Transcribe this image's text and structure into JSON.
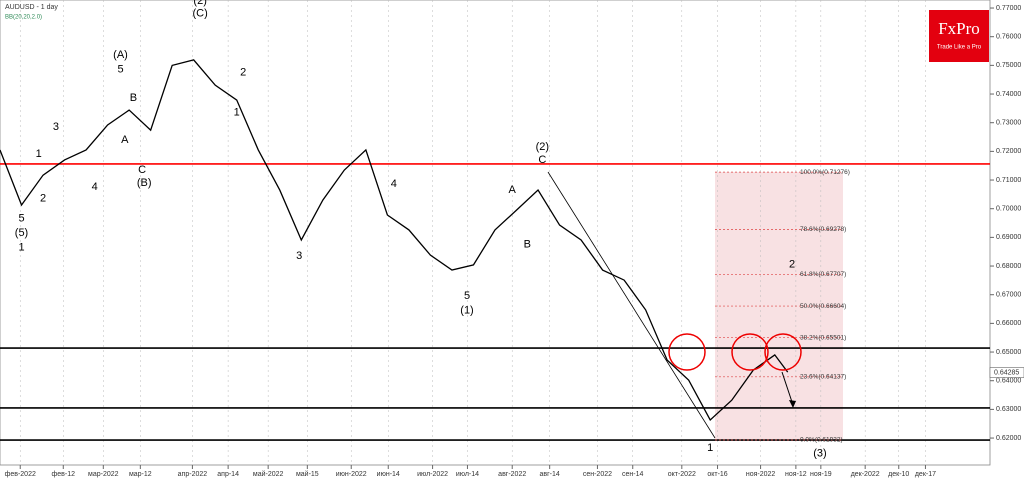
{
  "chart_data": {
    "type": "line",
    "title": "AUDUSD - 1 day",
    "subtitle": "BB(20,20,2.0)",
    "brand": {
      "name": "FxPro",
      "tagline": "Trade Like a Pro"
    },
    "x": [
      0,
      5,
      10,
      15,
      20,
      25,
      30,
      35,
      40,
      45,
      50,
      55,
      60,
      65,
      70,
      75,
      80,
      85,
      90,
      95,
      100,
      105,
      110,
      115,
      120,
      125,
      130,
      135,
      140,
      145,
      150,
      155,
      160,
      165,
      170,
      175,
      180,
      183
    ],
    "series": [
      {
        "name": "AUDUSD",
        "color": "#000000",
        "values": [
          0.7205,
          0.7013,
          0.7117,
          0.717,
          0.7205,
          0.7292,
          0.7344,
          0.7274,
          0.75,
          0.7519,
          0.7431,
          0.7379,
          0.7205,
          0.7065,
          0.6891,
          0.703,
          0.7135,
          0.7205,
          0.6978,
          0.6926,
          0.6838,
          0.6786,
          0.6804,
          0.6926,
          0.6995,
          0.7065,
          0.6943,
          0.6891,
          0.6786,
          0.6751,
          0.6647,
          0.6472,
          0.6402,
          0.6263,
          0.6332,
          0.6437,
          0.649,
          0.643
        ]
      }
    ],
    "xlim": [
      0,
      230
    ],
    "ylim": [
      0.6106,
      0.7728
    ],
    "xticks": [
      {
        "value": 4.7,
        "label": "фев-2022"
      },
      {
        "value": 14.7,
        "label": "фев-12"
      },
      {
        "value": 24,
        "label": "мар-2022"
      },
      {
        "value": 32.6,
        "label": "мар-12"
      },
      {
        "value": 44.7,
        "label": "апр-2022"
      },
      {
        "value": 53,
        "label": "апр-14"
      },
      {
        "value": 62.3,
        "label": "май-2022"
      },
      {
        "value": 71.4,
        "label": "май-15"
      },
      {
        "value": 81.6,
        "label": "июн-2022"
      },
      {
        "value": 90.2,
        "label": "июн-14"
      },
      {
        "value": 100.5,
        "label": "июл-2022"
      },
      {
        "value": 108.6,
        "label": "июл-14"
      },
      {
        "value": 119,
        "label": "авг-2022"
      },
      {
        "value": 127.7,
        "label": "авг-14"
      },
      {
        "value": 138.8,
        "label": "сен-2022"
      },
      {
        "value": 147,
        "label": "сен-14"
      },
      {
        "value": 158.4,
        "label": "окт-2022"
      },
      {
        "value": 166.7,
        "label": "окт-16"
      },
      {
        "value": 176.7,
        "label": "ноя-2022"
      },
      {
        "value": 184.9,
        "label": "ноя-12"
      },
      {
        "value": 190.7,
        "label": "ноя-19"
      },
      {
        "value": 201,
        "label": "дек-2022"
      },
      {
        "value": 208.8,
        "label": "дек-10"
      },
      {
        "value": 215,
        "label": "дек-17"
      }
    ],
    "yticks": [
      {
        "value": 0.62,
        "label": "0.62000"
      },
      {
        "value": 0.63,
        "label": "0.63000"
      },
      {
        "value": 0.64,
        "label": "0.64000"
      },
      {
        "value": 0.65,
        "label": "0.65000"
      },
      {
        "value": 0.66,
        "label": "0.66000"
      },
      {
        "value": 0.67,
        "label": "0.67000"
      },
      {
        "value": 0.68,
        "label": "0.68000"
      },
      {
        "value": 0.69,
        "label": "0.69000"
      },
      {
        "value": 0.7,
        "label": "0.70000"
      },
      {
        "value": 0.71,
        "label": "0.71000"
      },
      {
        "value": 0.72,
        "label": "0.72000"
      },
      {
        "value": 0.73,
        "label": "0.73000"
      },
      {
        "value": 0.74,
        "label": "0.74000"
      },
      {
        "value": 0.75,
        "label": "0.75000"
      },
      {
        "value": 0.76,
        "label": "0.76000"
      },
      {
        "value": 0.77,
        "label": "0.77000"
      }
    ],
    "current_price": {
      "value": 0.64285,
      "label": "0.64285"
    },
    "levels": [
      {
        "value": 0.7156,
        "color": "#ff0000"
      },
      {
        "value": 0.6514,
        "color": "#000000"
      },
      {
        "value": 0.6305,
        "color": "#000000"
      },
      {
        "value": 0.6193,
        "color": "#000000"
      }
    ],
    "fib_levels": [
      {
        "value": 0.71276,
        "label": "100.0%(0.71276)"
      },
      {
        "value": 0.69278,
        "label": "78.6%(0.69278)"
      },
      {
        "value": 0.67707,
        "label": "61.8%(0.67707)"
      },
      {
        "value": 0.66604,
        "label": "50.0%(0.66604)"
      },
      {
        "value": 0.65501,
        "label": "38.2%(0.65501)"
      },
      {
        "value": 0.64137,
        "label": "23.6%(0.64137)"
      },
      {
        "value": 0.61932,
        "label": "0.0%(0.61932)"
      }
    ],
    "annotations": [
      {
        "text": "5",
        "x": 5,
        "y": 0.6965
      },
      {
        "text": "(5)",
        "x": 5,
        "y": 0.6915
      },
      {
        "text": "1",
        "x": 5,
        "y": 0.6865
      },
      {
        "text": "1",
        "x": 9,
        "y": 0.719
      },
      {
        "text": "2",
        "x": 10,
        "y": 0.7035
      },
      {
        "text": "3",
        "x": 13,
        "y": 0.7285
      },
      {
        "text": "4",
        "x": 22,
        "y": 0.7075
      },
      {
        "text": "(A)",
        "x": 28,
        "y": 0.7535
      },
      {
        "text": "5",
        "x": 28,
        "y": 0.7485
      },
      {
        "text": "B",
        "x": 31,
        "y": 0.7385
      },
      {
        "text": "A",
        "x": 29,
        "y": 0.724
      },
      {
        "text": "C",
        "x": 33,
        "y": 0.7135
      },
      {
        "text": "(B)",
        "x": 33.5,
        "y": 0.709
      },
      {
        "text": "(2)",
        "x": 46.5,
        "y": 0.7725
      },
      {
        "text": "(C)",
        "x": 46.5,
        "y": 0.768
      },
      {
        "text": "2",
        "x": 56.5,
        "y": 0.7475
      },
      {
        "text": "1",
        "x": 55,
        "y": 0.7335
      },
      {
        "text": "4",
        "x": 91.5,
        "y": 0.7085
      },
      {
        "text": "3",
        "x": 69.5,
        "y": 0.6835
      },
      {
        "text": "5",
        "x": 108.5,
        "y": 0.6695
      },
      {
        "text": "(1)",
        "x": 108.5,
        "y": 0.6645
      },
      {
        "text": "A",
        "x": 119,
        "y": 0.7065
      },
      {
        "text": "B",
        "x": 122.5,
        "y": 0.6875
      },
      {
        "text": "(2)",
        "x": 126,
        "y": 0.7215
      },
      {
        "text": "C",
        "x": 126,
        "y": 0.717
      },
      {
        "text": "2",
        "x": 184,
        "y": 0.6805
      },
      {
        "text": "1",
        "x": 165,
        "y": 0.6165
      },
      {
        "text": "(3)",
        "x": 190.5,
        "y": 0.6145
      }
    ]
  }
}
